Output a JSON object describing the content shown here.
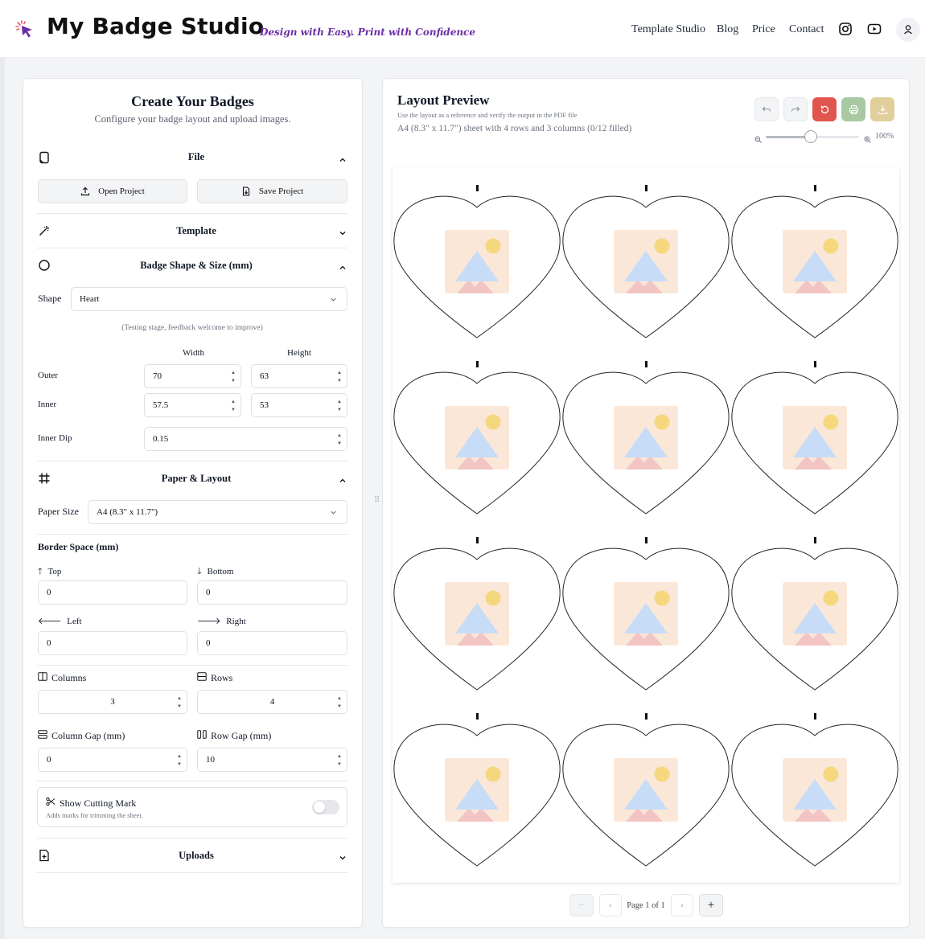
{
  "header": {
    "brand": "My Badge Studio",
    "tagline": "Design with Easy. Print with Confidence",
    "nav": [
      "Template Studio",
      "Blog",
      "Price",
      "Contact"
    ],
    "icons": [
      "instagram-icon",
      "youtube-icon",
      "user-icon"
    ]
  },
  "left": {
    "title": "Create Your Badges",
    "subtitle": "Configure your badge layout and upload images.",
    "file": {
      "title": "File",
      "open": "Open Project",
      "save": "Save Project"
    },
    "template": {
      "title": "Template"
    },
    "shape": {
      "title": "Badge Shape & Size (mm)",
      "shape_label": "Shape",
      "shape_value": "Heart",
      "note": "(Testing stage, feedback welcome to improve)",
      "width_header": "Width",
      "height_header": "Height",
      "outer_label": "Outer",
      "outer_width": "70",
      "outer_height": "63",
      "inner_label": "Inner",
      "inner_width": "57.5",
      "inner_height": "53",
      "dip_label": "Inner Dip",
      "dip_value": "0.15"
    },
    "paper": {
      "title": "Paper & Layout",
      "size_label": "Paper Size",
      "size_value": "A4 (8.3\" x 11.7\")",
      "border_title": "Border Space (mm)",
      "top_label": "Top",
      "top_value": "0",
      "bottom_label": "Bottom",
      "bottom_value": "0",
      "left_label": "Left",
      "left_value": "0",
      "right_label": "Right",
      "right_value": "0",
      "columns_label": "Columns",
      "columns_value": "3",
      "rows_label": "Rows",
      "rows_value": "4",
      "colgap_label": "Column Gap (mm)",
      "colgap_value": "0",
      "rowgap_label": "Row Gap (mm)",
      "rowgap_value": "10",
      "cutting_label": "Show Cutting Mark",
      "cutting_desc": "Adds marks for trimming the sheet.",
      "cutting_on": false
    },
    "uploads": {
      "title": "Uploads"
    }
  },
  "right": {
    "title": "Layout Preview",
    "reference": "Use the layout as a reference and verify the output in the PDF file",
    "info": "A4 (8.3\" x 11.7\") sheet with 4 rows and 3 columns (0/12 filled)",
    "zoom": "100%",
    "zoom_level": 0.48,
    "pager": {
      "text": "Page 1 of 1"
    },
    "rows": 4,
    "columns": 3
  },
  "colors": {
    "accent_purple": "#6b2fa5",
    "reset_red": "#e0554d",
    "print_green": "#a8c9a2",
    "download_gold": "#e0cf9a",
    "placeholder_bg": "#fbe7d8",
    "placeholder_sun": "#f5d77e",
    "placeholder_mountain": "#c7dcf7",
    "placeholder_mountain_back": "#f3c4c4"
  }
}
